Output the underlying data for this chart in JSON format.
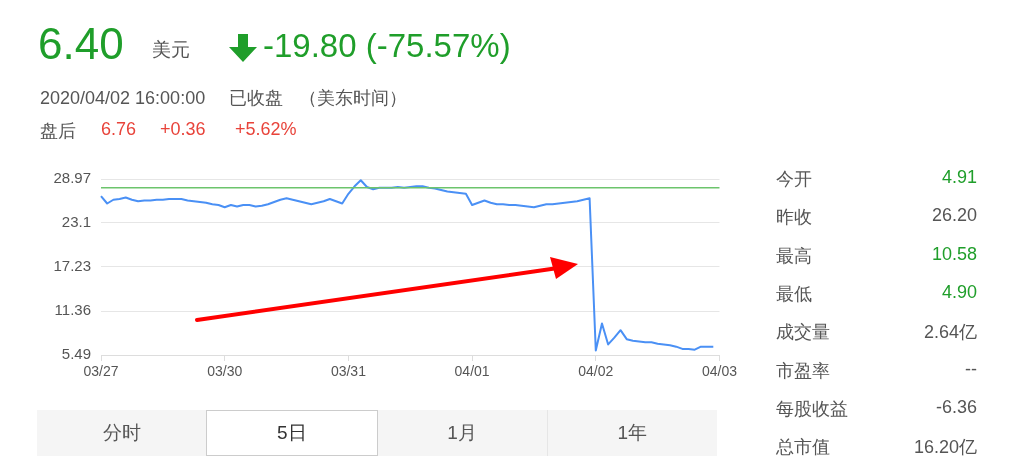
{
  "chart_data": {
    "type": "line",
    "title": "6.40",
    "annotations": [
      "美元",
      "-19.80 (-75.57%)",
      "2020/04/02 16:00:00",
      "已收盘",
      "（美东时间）",
      "盘后",
      "6.76",
      "+0.36",
      "+5.62%",
      "今开",
      "4.91",
      "昨收",
      "26.20",
      "最高",
      "10.58",
      "最低",
      "4.90",
      "成交量",
      "2.64亿",
      "市盈率",
      "--",
      "每股收益",
      "-6.36",
      "总市值",
      "16.20亿",
      "分时",
      "5日",
      "1月",
      "1年"
    ],
    "categories": [
      "03/27",
      null,
      null,
      null,
      null,
      null,
      null,
      null,
      null,
      null,
      null,
      null,
      null,
      null,
      null,
      null,
      null,
      null,
      null,
      null,
      "03/30",
      null,
      null,
      null,
      null,
      null,
      null,
      null,
      null,
      null,
      null,
      null,
      null,
      null,
      null,
      null,
      null,
      null,
      null,
      null,
      "03/31",
      null,
      null,
      null,
      null,
      null,
      null,
      null,
      null,
      null,
      null,
      null,
      null,
      null,
      null,
      null,
      null,
      null,
      null,
      null,
      "04/01",
      null,
      null,
      null,
      null,
      null,
      null,
      null,
      null,
      null,
      null,
      null,
      null,
      null,
      null,
      null,
      null,
      null,
      null,
      null,
      "04/02",
      null,
      null,
      null,
      null,
      null,
      null,
      null,
      null,
      null,
      null,
      null,
      null,
      null,
      null,
      null,
      null,
      null,
      null,
      null,
      "04/03"
    ],
    "ylim": [
      5.49,
      28.97
    ],
    "yticks": [
      5.49,
      11.36,
      17.23,
      23.1,
      28.97
    ],
    "grid": "y",
    "ref_lines": [
      {
        "axis": "y",
        "value": 27.8,
        "color": "#6cc46c"
      }
    ],
    "series": [
      {
        "color": "#4a90f5",
        "values": [
          26.7,
          25.7,
          26.2,
          26.3,
          26.5,
          26.2,
          26.0,
          26.1,
          26.1,
          26.2,
          26.2,
          26.3,
          26.3,
          26.3,
          26.1,
          26.0,
          25.9,
          25.8,
          25.6,
          25.5,
          25.2,
          25.5,
          25.3,
          25.5,
          25.5,
          25.3,
          25.4,
          25.6,
          25.9,
          26.2,
          26.4,
          26.2,
          26.0,
          25.8,
          25.6,
          25.8,
          26.0,
          26.3,
          26.0,
          25.7,
          27.0,
          28.0,
          28.8,
          27.9,
          27.6,
          27.8,
          27.8,
          27.8,
          27.9,
          27.8,
          27.9,
          28.0,
          28.0,
          27.8,
          27.7,
          27.5,
          27.3,
          27.2,
          27.1,
          27.0,
          25.5,
          25.8,
          26.1,
          25.8,
          25.6,
          25.6,
          25.5,
          25.5,
          25.4,
          25.3,
          25.2,
          25.4,
          25.6,
          25.6,
          25.7,
          25.8,
          25.9,
          26.0,
          26.2,
          26.4,
          6.1,
          9.7,
          6.9,
          7.8,
          8.8,
          7.6,
          7.4,
          7.3,
          7.2,
          7.2,
          7.0,
          6.9,
          6.8,
          6.6,
          6.3,
          6.3,
          6.2,
          6.6,
          6.6,
          6.6,
          null
        ]
      }
    ]
  }
}
